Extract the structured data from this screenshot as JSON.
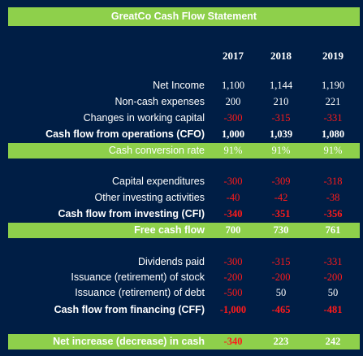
{
  "title": "GreatCo Cash Flow Statement",
  "years": [
    "2017",
    "2018",
    "2019"
  ],
  "rows": [
    {
      "label": "Net Income",
      "values": [
        "1,100",
        "1,144",
        "1,190"
      ],
      "neg": [
        false,
        false,
        false
      ]
    },
    {
      "label": "Non-cash expenses",
      "values": [
        "200",
        "210",
        "221"
      ],
      "neg": [
        false,
        false,
        false
      ]
    },
    {
      "label": "Changes in working capital",
      "values": [
        "-300",
        "-315",
        "-331"
      ],
      "neg": [
        true,
        true,
        true
      ]
    },
    {
      "label": "Cash flow from operations (CFO)",
      "values": [
        "1,000",
        "1,039",
        "1,080"
      ],
      "neg": [
        false,
        false,
        false
      ]
    },
    {
      "label": "Cash conversion rate",
      "values": [
        "91%",
        "91%",
        "91%"
      ],
      "neg": [
        false,
        false,
        false
      ]
    },
    {
      "label": "Capital expenditures",
      "values": [
        "-300",
        "-309",
        "-318"
      ],
      "neg": [
        true,
        true,
        true
      ]
    },
    {
      "label": "Other investing activities",
      "values": [
        "-40",
        "-42",
        "-38"
      ],
      "neg": [
        true,
        true,
        true
      ]
    },
    {
      "label": "Cash flow from investing (CFI)",
      "values": [
        "-340",
        "-351",
        "-356"
      ],
      "neg": [
        true,
        true,
        true
      ]
    },
    {
      "label": "Free cash flow",
      "values": [
        "700",
        "730",
        "761"
      ],
      "neg": [
        false,
        false,
        false
      ]
    },
    {
      "label": "Dividends paid",
      "values": [
        "-300",
        "-315",
        "-331"
      ],
      "neg": [
        true,
        true,
        true
      ]
    },
    {
      "label": "Issuance (retirement) of stock",
      "values": [
        "-200",
        "-200",
        "-200"
      ],
      "neg": [
        true,
        true,
        true
      ]
    },
    {
      "label": "Issuance (retirement) of debt",
      "values": [
        "-500",
        "50",
        "50"
      ],
      "neg": [
        true,
        false,
        false
      ]
    },
    {
      "label": "Cash flow from financing (CFF)",
      "values": [
        "-1,000",
        "-465",
        "-481"
      ],
      "neg": [
        true,
        true,
        true
      ]
    },
    {
      "label": "Net increase (decrease) in cash",
      "values": [
        "-340",
        "223",
        "242"
      ],
      "neg": [
        true,
        false,
        false
      ]
    }
  ]
}
